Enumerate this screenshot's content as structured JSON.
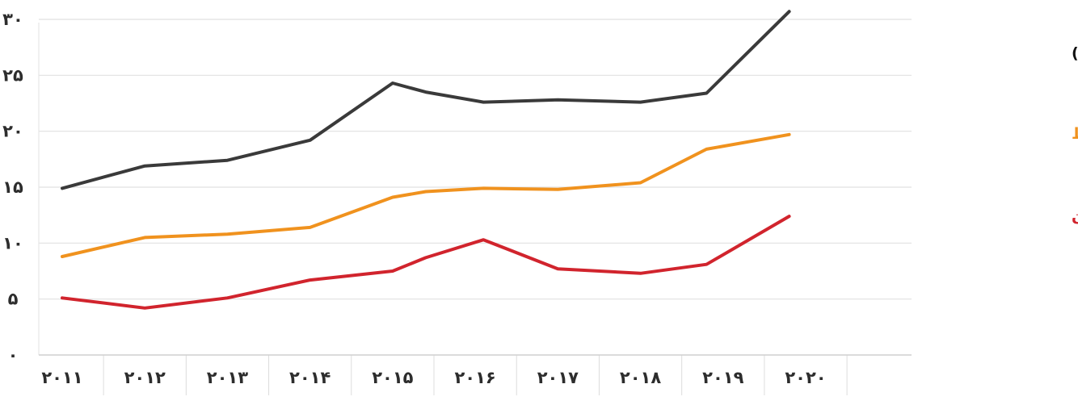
{
  "chart_data": {
    "type": "line",
    "title": "",
    "xlabel": "",
    "ylabel": "",
    "categories": [
      "۲۰۱۱",
      "۲۰۱۲",
      "۲۰۱۳",
      "۲۰۱۴",
      "۲۰۱۵",
      "۲۰۱۶",
      "۲۰۱۷",
      "۲۰۱۸",
      "۲۰۱۹",
      "۲۰۲۰"
    ],
    "x": [
      2011,
      2012,
      2013,
      2014,
      2015,
      2016,
      2017,
      2018,
      2019,
      2020
    ],
    "y_ticks": [
      {
        "value": 0,
        "label": "۰"
      },
      {
        "value": 5,
        "label": "۵"
      },
      {
        "value": 10,
        "label": "۱۰"
      },
      {
        "value": 15,
        "label": "۱۵"
      },
      {
        "value": 20,
        "label": "۲۰"
      },
      {
        "value": 25,
        "label": "۲۵"
      },
      {
        "value": 30,
        "label": "۳۰"
      }
    ],
    "ylim": [
      0,
      30
    ],
    "grid": true,
    "legend_placement": "right",
    "series": [
      {
        "name": "درآمد بالا (در حال توسعه)",
        "color": "#3a3a3a",
        "x": [
          2011,
          2012,
          2013,
          2014,
          2015,
          2015.4,
          2016.1,
          2017,
          2018,
          2018.8,
          2019.8
        ],
        "values": [
          14.9,
          16.9,
          17.4,
          19.2,
          24.3,
          23.5,
          22.6,
          22.8,
          22.6,
          23.4,
          30.7
        ]
      },
      {
        "name": "درآمد متوسط",
        "color": "#f0921e",
        "x": [
          2011,
          2012,
          2013,
          2014,
          2015,
          2015.4,
          2016.1,
          2017,
          2018,
          2018.8,
          2019.8
        ],
        "values": [
          8.8,
          10.5,
          10.8,
          11.4,
          14.1,
          14.6,
          14.9,
          14.8,
          15.4,
          18.4,
          19.7
        ]
      },
      {
        "name": "درآمد پایین",
        "color": "#d1242d",
        "x": [
          2011,
          2012,
          2013,
          2014,
          2015,
          2015.4,
          2016.1,
          2017,
          2018,
          2018.8,
          2019.8
        ],
        "values": [
          5.1,
          4.2,
          5.1,
          6.7,
          7.5,
          8.7,
          10.3,
          7.7,
          7.3,
          8.1,
          12.4
        ]
      }
    ]
  }
}
